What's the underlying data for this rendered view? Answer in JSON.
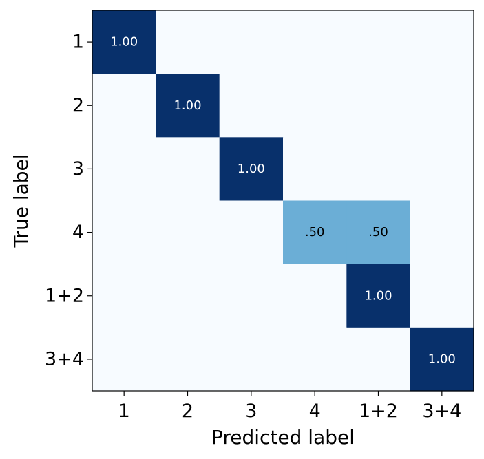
{
  "chart_data": {
    "type": "heatmap",
    "title": "",
    "xlabel": "Predicted label",
    "ylabel": "True label",
    "x_categories": [
      "1",
      "2",
      "3",
      "4",
      "1+2",
      "3+4"
    ],
    "y_categories": [
      "1",
      "2",
      "3",
      "4",
      "1+2",
      "3+4"
    ],
    "values": [
      [
        1.0,
        0,
        0,
        0,
        0,
        0
      ],
      [
        0,
        1.0,
        0,
        0,
        0,
        0
      ],
      [
        0,
        0,
        1.0,
        0,
        0,
        0
      ],
      [
        0,
        0,
        0,
        0.5,
        0.5,
        0
      ],
      [
        0,
        0,
        0,
        0,
        1.0,
        0
      ],
      [
        0,
        0,
        0,
        0,
        0,
        1.0
      ]
    ],
    "cell_labels": [
      [
        "1.00",
        "",
        "",
        "",
        "",
        ""
      ],
      [
        "",
        "1.00",
        "",
        "",
        "",
        ""
      ],
      [
        "",
        "",
        "1.00",
        "",
        "",
        ""
      ],
      [
        "",
        "",
        "",
        ".50",
        ".50",
        ""
      ],
      [
        "",
        "",
        "",
        "",
        "1.00",
        ""
      ],
      [
        "",
        "",
        "",
        "",
        "",
        "1.00"
      ]
    ],
    "value_range": [
      0,
      1
    ],
    "colormap": "Blues",
    "colors": {
      "low": "#f7fbff",
      "mid": "#6baed6",
      "high": "#08306b",
      "text_on_dark": "#ffffff",
      "text_on_light": "#000000"
    },
    "grid": false,
    "legend": "none"
  }
}
